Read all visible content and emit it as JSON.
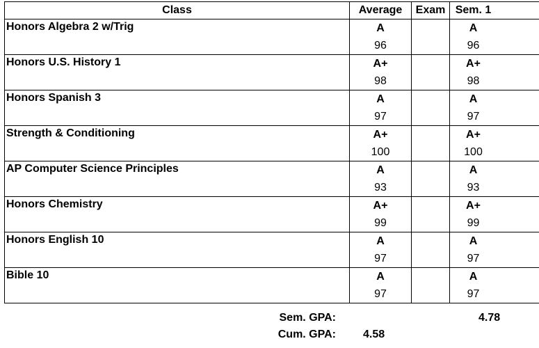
{
  "table": {
    "headers": {
      "class": "Class",
      "average": "Average",
      "exam": "Exam",
      "sem1": "Sem. 1"
    },
    "rows": [
      {
        "class": "Honors Algebra 2 w/Trig",
        "avg_letter": "A",
        "avg_num": "96",
        "exam": "",
        "sem_letter": "A",
        "sem_num": "96"
      },
      {
        "class": "Honors U.S. History 1",
        "avg_letter": "A+",
        "avg_num": "98",
        "exam": "",
        "sem_letter": "A+",
        "sem_num": "98"
      },
      {
        "class": "Honors Spanish 3",
        "avg_letter": "A",
        "avg_num": "97",
        "exam": "",
        "sem_letter": "A",
        "sem_num": "97"
      },
      {
        "class": "Strength & Conditioning",
        "avg_letter": "A+",
        "avg_num": "100",
        "exam": "",
        "sem_letter": "A+",
        "sem_num": "100"
      },
      {
        "class": "AP Computer Science Principles",
        "avg_letter": "A",
        "avg_num": "93",
        "exam": "",
        "sem_letter": "A",
        "sem_num": "93"
      },
      {
        "class": "Honors Chemistry",
        "avg_letter": "A+",
        "avg_num": "99",
        "exam": "",
        "sem_letter": "A+",
        "sem_num": "99"
      },
      {
        "class": "Honors English 10",
        "avg_letter": "A",
        "avg_num": "97",
        "exam": "",
        "sem_letter": "A",
        "sem_num": "97"
      },
      {
        "class": "Bible 10",
        "avg_letter": "A",
        "avg_num": "97",
        "exam": "",
        "sem_letter": "A",
        "sem_num": "97"
      }
    ]
  },
  "summary": {
    "sem_gpa_label": "Sem. GPA:",
    "sem_gpa_value": "4.78",
    "cum_gpa_label": "Cum. GPA:",
    "cum_gpa_value": "4.58"
  }
}
